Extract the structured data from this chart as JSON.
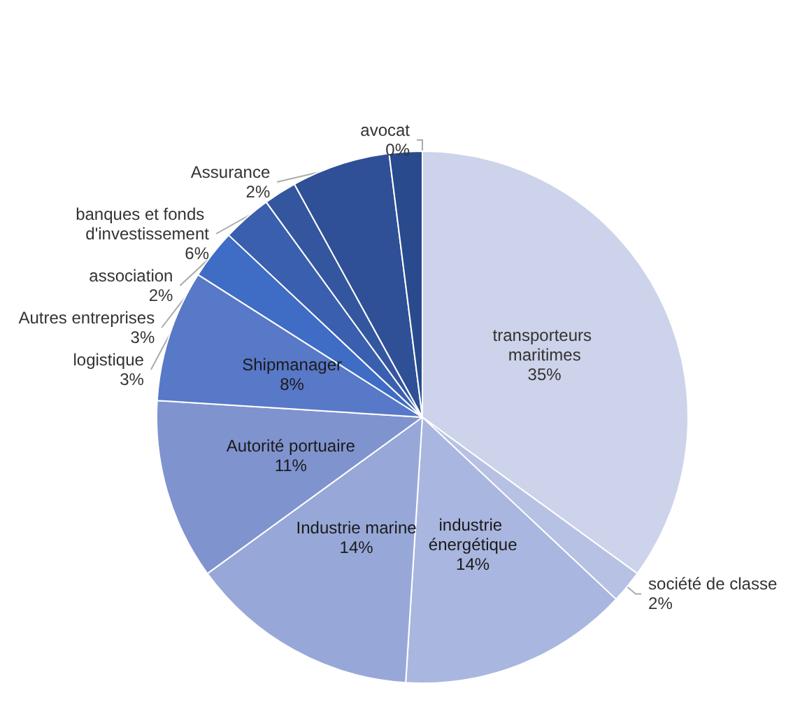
{
  "chart_data": {
    "type": "pie",
    "categories": [
      "transporteurs maritimes",
      "société de classe",
      "industrie énergétique",
      "Industrie marine",
      "Autorité portuaire",
      "Shipmanager",
      "logistique",
      "Autres entreprises",
      "association",
      "banques et fonds d'investissement",
      "Assurance",
      "avocat"
    ],
    "values": [
      35,
      2,
      14,
      14,
      11,
      8,
      3,
      3,
      2,
      6,
      2,
      0
    ],
    "value_labels": [
      "35%",
      "2%",
      "14%",
      "14%",
      "11%",
      "8%",
      "3%",
      "3%",
      "2%",
      "6%",
      "2%",
      "0%"
    ],
    "colors": [
      "#cdd3ea",
      "#b7c1e3",
      "#a9b6df",
      "#97a8d8",
      "#7f93cf",
      "#5878c8",
      "#3f6cc4",
      "#3a5fae",
      "#34569f",
      "#2f5096",
      "#294a8c",
      "#213e7a"
    ],
    "legend": false
  }
}
